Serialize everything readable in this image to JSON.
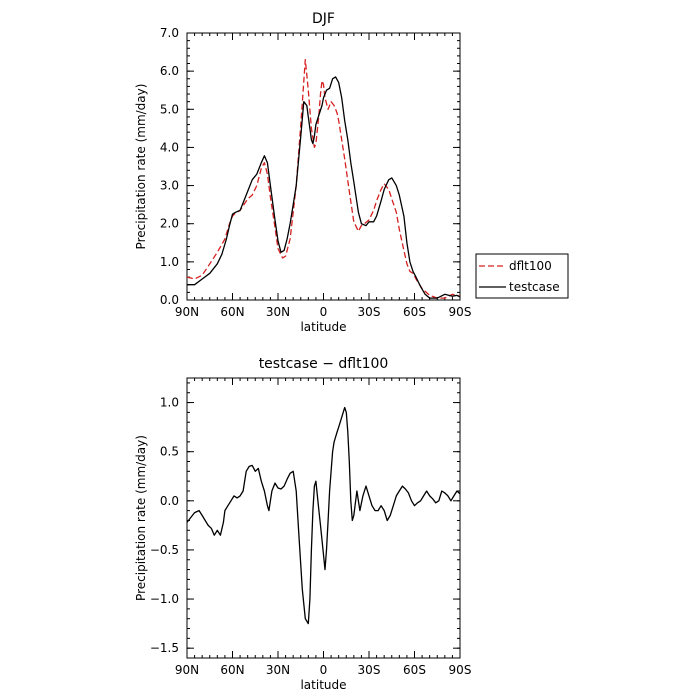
{
  "chart_data": [
    {
      "type": "line",
      "title": "DJF",
      "xlabel": "latitude",
      "ylabel": "Precipitation rate (mm/day)",
      "xlim": [
        90,
        -90
      ],
      "ylim": [
        0,
        7
      ],
      "xticks": [
        {
          "value": 90,
          "label": "90N"
        },
        {
          "value": 60,
          "label": "60N"
        },
        {
          "value": 30,
          "label": "30N"
        },
        {
          "value": 0,
          "label": "0"
        },
        {
          "value": -30,
          "label": "30S"
        },
        {
          "value": -60,
          "label": "60S"
        },
        {
          "value": -90,
          "label": "90S"
        }
      ],
      "yticks": [
        {
          "value": 0,
          "label": "0.0"
        },
        {
          "value": 1,
          "label": "1.0"
        },
        {
          "value": 2,
          "label": "2.0"
        },
        {
          "value": 3,
          "label": "3.0"
        },
        {
          "value": 4,
          "label": "4.0"
        },
        {
          "value": 5,
          "label": "5.0"
        },
        {
          "value": 6,
          "label": "6.0"
        },
        {
          "value": 7,
          "label": "7.0"
        }
      ],
      "legend_position": "right",
      "series": [
        {
          "name": "dflt100",
          "color": "#d62020",
          "dash": "dashed",
          "x": [
            90,
            85,
            80,
            75,
            70,
            65,
            62,
            60,
            58,
            55,
            50,
            47,
            44,
            41,
            39,
            37,
            35,
            32,
            30,
            27,
            25,
            22,
            20,
            18,
            15,
            12,
            10,
            8,
            6,
            5,
            3,
            2,
            1,
            0,
            -1,
            -3,
            -5,
            -7,
            -9,
            -10,
            -12,
            -14,
            -15,
            -17,
            -20,
            -23,
            -25,
            -27,
            -30,
            -33,
            -35,
            -38,
            -40,
            -43,
            -45,
            -48,
            -50,
            -53,
            -55,
            -57,
            -59,
            -61,
            -65,
            -70,
            -75,
            -80,
            -85,
            -88,
            -90
          ],
          "y": [
            0.6,
            0.55,
            0.65,
            0.95,
            1.25,
            1.6,
            2.0,
            2.2,
            2.28,
            2.35,
            2.65,
            2.75,
            3.0,
            3.45,
            3.6,
            3.3,
            2.7,
            1.9,
            1.35,
            1.1,
            1.15,
            1.6,
            2.3,
            3.0,
            4.6,
            6.3,
            5.5,
            4.5,
            4.0,
            4.1,
            4.85,
            5.4,
            5.75,
            5.65,
            5.3,
            5.0,
            5.2,
            5.1,
            4.9,
            4.7,
            4.2,
            3.7,
            3.4,
            2.85,
            2.05,
            1.8,
            1.95,
            2.0,
            2.1,
            2.35,
            2.6,
            2.9,
            3.05,
            2.9,
            2.65,
            2.3,
            1.85,
            1.3,
            0.95,
            0.75,
            0.7,
            0.55,
            0.3,
            0.12,
            0.05,
            0.05,
            0.15,
            0.12,
            0.1
          ]
        },
        {
          "name": "testcase",
          "color": "#000000",
          "dash": "solid",
          "x": [
            90,
            85,
            80,
            75,
            70,
            67,
            64,
            62,
            60,
            58,
            55,
            50,
            47,
            44,
            41,
            39,
            37,
            35,
            32,
            30,
            28,
            26,
            24,
            22,
            20,
            18,
            15,
            13,
            11,
            10,
            9,
            8,
            7,
            6,
            5,
            3,
            1,
            0,
            -2,
            -4,
            -6,
            -8,
            -10,
            -12,
            -14,
            -16,
            -18,
            -20,
            -23,
            -25,
            -28,
            -30,
            -33,
            -35,
            -38,
            -40,
            -43,
            -45,
            -48,
            -50,
            -53,
            -55,
            -57,
            -59,
            -61,
            -64,
            -67,
            -70,
            -75,
            -80,
            -85,
            -88,
            -90
          ],
          "y": [
            0.4,
            0.4,
            0.55,
            0.7,
            0.95,
            1.2,
            1.6,
            1.95,
            2.25,
            2.3,
            2.35,
            2.85,
            3.15,
            3.3,
            3.6,
            3.78,
            3.6,
            3.0,
            2.1,
            1.55,
            1.25,
            1.3,
            1.6,
            2.0,
            2.5,
            3.0,
            4.3,
            5.2,
            5.1,
            4.8,
            4.5,
            4.2,
            4.1,
            4.3,
            4.6,
            4.85,
            5.1,
            5.3,
            5.5,
            5.55,
            5.8,
            5.85,
            5.7,
            5.3,
            4.7,
            4.2,
            3.6,
            3.1,
            2.3,
            2.0,
            1.95,
            2.05,
            2.05,
            2.2,
            2.6,
            2.9,
            3.15,
            3.2,
            3.0,
            2.75,
            2.2,
            1.5,
            1.0,
            0.75,
            0.6,
            0.35,
            0.15,
            0.05,
            0.05,
            0.15,
            0.1,
            0.12,
            0.08
          ]
        }
      ]
    },
    {
      "type": "line",
      "title": "testcase − dflt100",
      "xlabel": "latitude",
      "ylabel": "Precipitation rate (mm/day)",
      "xlim": [
        90,
        -90
      ],
      "ylim": [
        -1.6,
        1.25
      ],
      "xticks": [
        {
          "value": 90,
          "label": "90N"
        },
        {
          "value": 60,
          "label": "60N"
        },
        {
          "value": 30,
          "label": "30N"
        },
        {
          "value": 0,
          "label": "0"
        },
        {
          "value": -30,
          "label": "30S"
        },
        {
          "value": -60,
          "label": "60S"
        },
        {
          "value": -90,
          "label": "90S"
        }
      ],
      "yticks": [
        {
          "value": -1.5,
          "label": "−1.5"
        },
        {
          "value": -1.0,
          "label": "−1.0"
        },
        {
          "value": -0.5,
          "label": "−0.5"
        },
        {
          "value": 0,
          "label": "0.0"
        },
        {
          "value": 0.5,
          "label": "0.5"
        },
        {
          "value": 1.0,
          "label": "1.0"
        }
      ],
      "series": [
        {
          "color": "#000000",
          "dash": "solid",
          "x": [
            90,
            88,
            85,
            82,
            80,
            78,
            76,
            74,
            72,
            70,
            68,
            66,
            65,
            63,
            61,
            59,
            57,
            55,
            53,
            51,
            49,
            47,
            45,
            43,
            41,
            39,
            37,
            36,
            34,
            32,
            30,
            28,
            26,
            24,
            22,
            20,
            18,
            16,
            14,
            12,
            10,
            9,
            8,
            7,
            6,
            5,
            4,
            3,
            2,
            1,
            0,
            -1,
            -2,
            -3,
            -4,
            -5,
            -6,
            -7,
            -8,
            -9,
            -10,
            -11,
            -12,
            -13,
            -14,
            -15,
            -16,
            -17,
            -18,
            -19,
            -20,
            -22,
            -24,
            -26,
            -28,
            -30,
            -32,
            -34,
            -36,
            -38,
            -40,
            -42,
            -44,
            -46,
            -48,
            -50,
            -52,
            -54,
            -56,
            -58,
            -60,
            -62,
            -64,
            -66,
            -68,
            -70,
            -72,
            -74,
            -76,
            -78,
            -80,
            -82,
            -84,
            -86,
            -88,
            -90
          ],
          "y": [
            -0.22,
            -0.18,
            -0.12,
            -0.1,
            -0.15,
            -0.2,
            -0.25,
            -0.28,
            -0.35,
            -0.3,
            -0.35,
            -0.22,
            -0.1,
            -0.05,
            0.0,
            0.05,
            0.03,
            0.05,
            0.1,
            0.3,
            0.35,
            0.36,
            0.3,
            0.33,
            0.2,
            0.1,
            -0.05,
            -0.1,
            0.1,
            0.18,
            0.13,
            0.12,
            0.15,
            0.22,
            0.28,
            0.3,
            0.1,
            -0.4,
            -0.9,
            -1.2,
            -1.25,
            -1.0,
            -0.5,
            -0.1,
            0.15,
            0.2,
            0.05,
            -0.1,
            -0.25,
            -0.4,
            -0.55,
            -0.7,
            -0.5,
            -0.2,
            0.1,
            0.3,
            0.5,
            0.6,
            0.65,
            0.7,
            0.75,
            0.8,
            0.85,
            0.9,
            0.95,
            0.9,
            0.7,
            0.4,
            0.0,
            -0.2,
            -0.15,
            0.1,
            -0.1,
            0.05,
            0.15,
            0.05,
            -0.05,
            -0.1,
            -0.1,
            -0.05,
            -0.1,
            -0.2,
            -0.15,
            -0.05,
            0.05,
            0.1,
            0.15,
            0.12,
            0.08,
            0.0,
            -0.05,
            -0.02,
            0.0,
            0.05,
            0.1,
            0.05,
            0.02,
            -0.02,
            0.0,
            0.1,
            0.08,
            0.05,
            0.0,
            0.05,
            0.1,
            0.07
          ]
        }
      ]
    }
  ]
}
